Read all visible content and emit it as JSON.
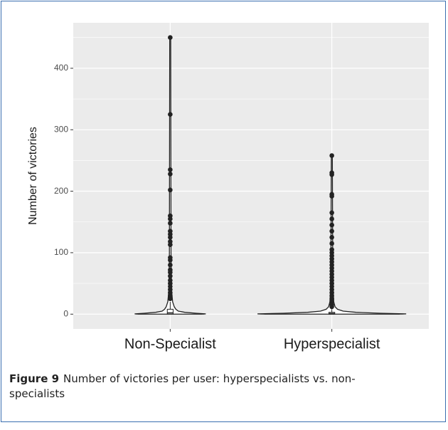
{
  "chart_data": {
    "type": "violin",
    "ylabel": "Number of victories",
    "categories": [
      "Non-Specialist",
      "Hyperspecialist"
    ],
    "ylim": [
      -24,
      474
    ],
    "yticks": [
      0,
      100,
      200,
      300,
      400
    ],
    "minor_yticks": [
      50,
      150,
      250,
      350,
      450
    ],
    "grid": true,
    "violins": [
      {
        "y": [
          0,
          0.5,
          1.5,
          3,
          5,
          8,
          12,
          20,
          40,
          100,
          450
        ],
        "half_width": [
          0.2,
          0.22,
          0.16,
          0.09,
          0.05,
          0.035,
          0.025,
          0.015,
          0.008,
          0.005,
          0.003
        ]
      },
      {
        "y": [
          0,
          0.5,
          1.5,
          3,
          5,
          8,
          12,
          20,
          50,
          258
        ],
        "half_width": [
          0.42,
          0.46,
          0.3,
          0.15,
          0.07,
          0.035,
          0.02,
          0.012,
          0.006,
          0.003
        ]
      }
    ],
    "boxes": [
      {
        "whisker_low": 0,
        "q1": 0,
        "median": 2,
        "q3": 8,
        "whisker_high": 20
      },
      {
        "whisker_low": 0,
        "q1": 0,
        "median": 1,
        "q3": 3,
        "whisker_high": 8
      }
    ],
    "outliers": [
      [
        450,
        325,
        235,
        228,
        202,
        160,
        155,
        148,
        135,
        130,
        125,
        118,
        113,
        92,
        88,
        80,
        72,
        68,
        62,
        55,
        50,
        45,
        40,
        35,
        30,
        25
      ],
      [
        258,
        230,
        227,
        195,
        192,
        165,
        155,
        145,
        135,
        125,
        115,
        105,
        100,
        95,
        90,
        85,
        80,
        75,
        70,
        65,
        60,
        55,
        50,
        45,
        40,
        35,
        30,
        25,
        20,
        15,
        12
      ]
    ]
  },
  "caption": {
    "label": "Figure 9",
    "text": "Number of victories per user: hyperspecialists vs. non-specialists"
  }
}
